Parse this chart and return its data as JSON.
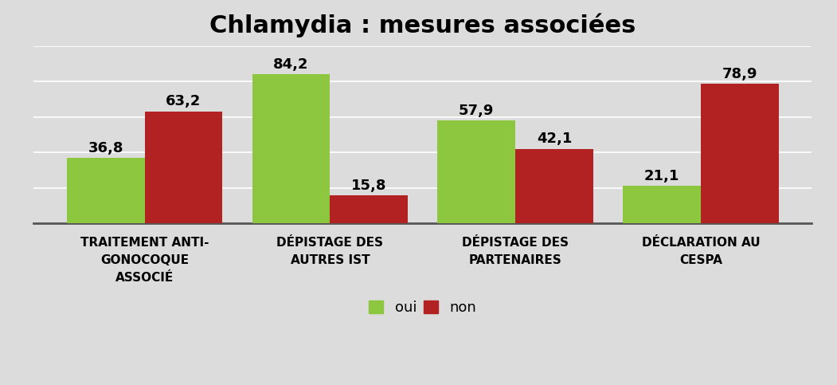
{
  "title": "Chlamydia : mesures associées",
  "categories": [
    "TRAITEMENT ANTI-\nGONOCOQUE\nASSOCIÉ",
    "DÉPISTAGE DES\nAUTRES IST",
    "DÉPISTAGE DES\nPARTENAIRES",
    "DÉCLARATION AU\nCESPA"
  ],
  "oui_values": [
    36.8,
    84.2,
    57.9,
    21.1
  ],
  "non_values": [
    63.2,
    15.8,
    42.1,
    78.9
  ],
  "oui_color": "#8DC63F",
  "non_color": "#B22222",
  "background_color": "#DCDCDC",
  "ylim": [
    0,
    100
  ],
  "bar_width": 0.42,
  "title_fontsize": 22,
  "label_fontsize": 11,
  "value_fontsize": 13,
  "legend_fontsize": 13
}
